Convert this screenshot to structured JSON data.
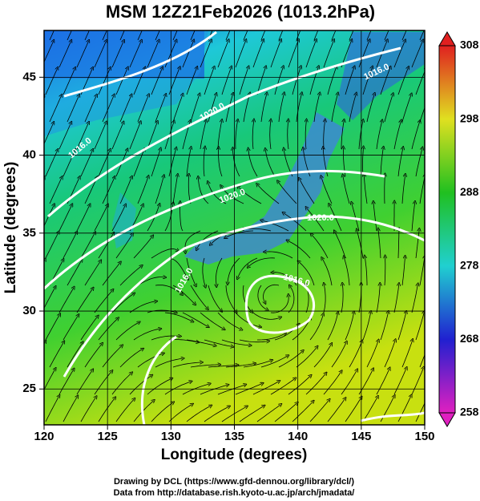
{
  "title": "MSM 12Z21Feb2026 (1013.2hPa)",
  "x_axis": {
    "label": "Longitude (degrees)",
    "xlim": [
      120,
      150
    ],
    "xticks": [
      120,
      125,
      130,
      135,
      140,
      145,
      150
    ]
  },
  "y_axis": {
    "label": "Latitude  (degrees)",
    "ylim": [
      22.7,
      48
    ],
    "yticks": [
      25,
      30,
      35,
      40,
      45
    ]
  },
  "colorbar": {
    "lim": [
      258,
      308
    ],
    "ticks": [
      258,
      268,
      278,
      288,
      298,
      308
    ]
  },
  "contour_labels": [
    "1016.0",
    "1020.0",
    "1020.0",
    "1016.0",
    "1016.0",
    "1020.0",
    "1016.0"
  ],
  "credits": [
    "Drawing by DCL (https://www.gfd-dennou.org/library/dcl/)",
    "Data from http://database.rish.kyoto-u.ac.jp/arch/jmadata/"
  ]
}
